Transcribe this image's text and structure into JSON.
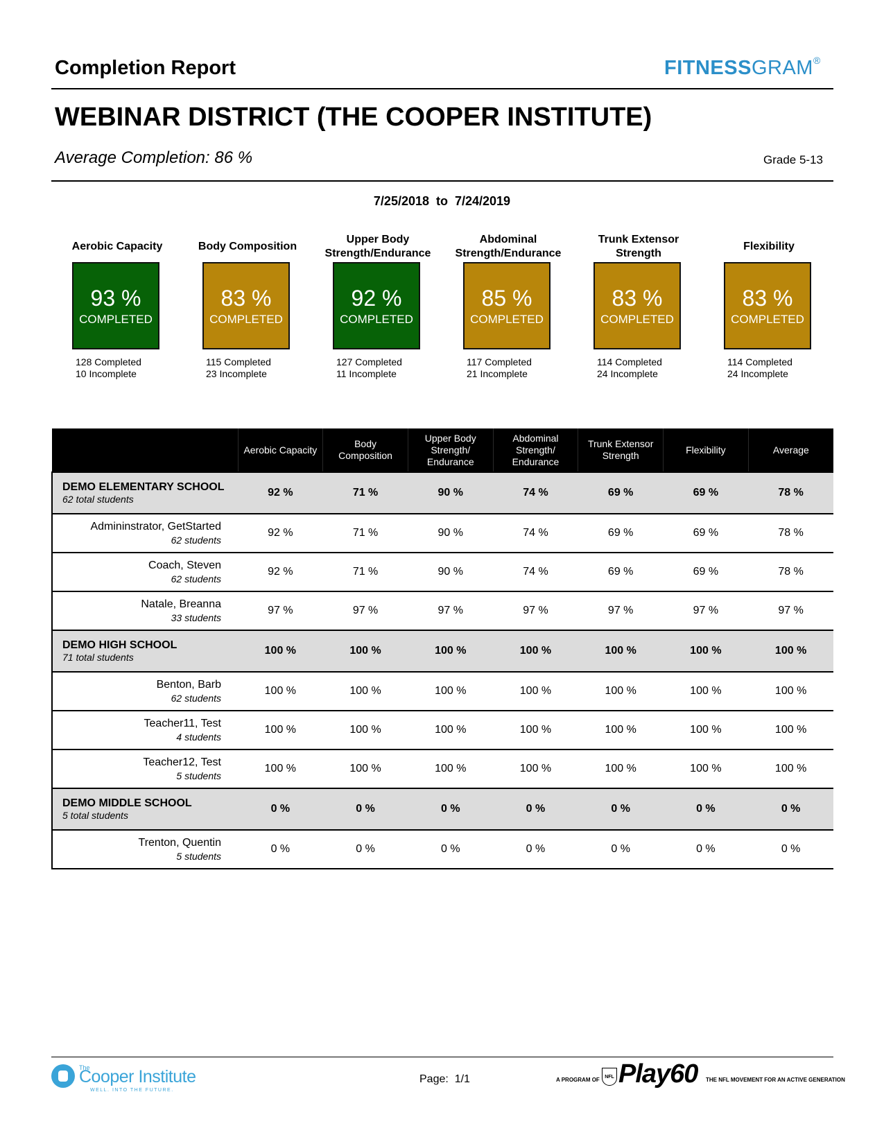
{
  "header": {
    "report_title": "Completion Report",
    "logo_bold": "FITNESS",
    "logo_light": "GRAM",
    "logo_reg": "®",
    "district": "WEBINAR DISTRICT (THE COOPER INSTITUTE)",
    "avg_completion_label": "Average Completion:",
    "avg_completion_value": "86 %",
    "grade": "Grade 5-13",
    "date_range": "7/25/2018  to  7/24/2019"
  },
  "colors": {
    "complete_green": "#076207",
    "partial_gold": "#b8860b"
  },
  "summary": [
    {
      "label_line1": "Aerobic Capacity",
      "label_line2": "",
      "pct": "93 %",
      "word": "COMPLETED",
      "completed": "128 Completed",
      "incomplete": "10 Incomplete",
      "status": "green"
    },
    {
      "label_line1": "Body Composition",
      "label_line2": "",
      "pct": "83 %",
      "word": "COMPLETED",
      "completed": "115 Completed",
      "incomplete": "23 Incomplete",
      "status": "gold"
    },
    {
      "label_line1": "Upper Body",
      "label_line2": "Strength/Endurance",
      "pct": "92 %",
      "word": "COMPLETED",
      "completed": "127 Completed",
      "incomplete": "11 Incomplete",
      "status": "green"
    },
    {
      "label_line1": "Abdominal",
      "label_line2": "Strength/Endurance",
      "pct": "85 %",
      "word": "COMPLETED",
      "completed": "117 Completed",
      "incomplete": "21 Incomplete",
      "status": "gold"
    },
    {
      "label_line1": "Trunk Extensor",
      "label_line2": "Strength",
      "pct": "83 %",
      "word": "COMPLETED",
      "completed": "114 Completed",
      "incomplete": "24 Incomplete",
      "status": "gold"
    },
    {
      "label_line1": "Flexibility",
      "label_line2": "",
      "pct": "83 %",
      "word": "COMPLETED",
      "completed": "114 Completed",
      "incomplete": "24 Incomplete",
      "status": "gold"
    }
  ],
  "table": {
    "columns": [
      [
        "Aerobic Capacity"
      ],
      [
        "Body",
        "Composition"
      ],
      [
        "Upper Body",
        "Strength/",
        "Endurance"
      ],
      [
        "Abdominal",
        "Strength/",
        "Endurance"
      ],
      [
        "Trunk Extensor",
        "Strength"
      ],
      [
        "Flexibility"
      ],
      [
        "Average"
      ]
    ],
    "rows": [
      {
        "type": "school",
        "name": "DEMO ELEMENTARY SCHOOL",
        "sub": "62 total students",
        "values": [
          "92 %",
          "71 %",
          "90 %",
          "74 %",
          "69 %",
          "69 %",
          "78 %"
        ]
      },
      {
        "type": "teacher",
        "name": "Admininstrator, GetStarted",
        "sub": "62 students",
        "values": [
          "92 %",
          "71 %",
          "90 %",
          "74 %",
          "69 %",
          "69 %",
          "78 %"
        ]
      },
      {
        "type": "teacher",
        "name": "Coach, Steven",
        "sub": "62 students",
        "values": [
          "92 %",
          "71 %",
          "90 %",
          "74 %",
          "69 %",
          "69 %",
          "78 %"
        ]
      },
      {
        "type": "teacher",
        "name": "Natale, Breanna",
        "sub": "33 students",
        "values": [
          "97 %",
          "97 %",
          "97 %",
          "97 %",
          "97 %",
          "97 %",
          "97 %"
        ]
      },
      {
        "type": "school",
        "name": "DEMO HIGH SCHOOL",
        "sub": "71 total students",
        "values": [
          "100 %",
          "100 %",
          "100 %",
          "100 %",
          "100 %",
          "100 %",
          "100 %"
        ]
      },
      {
        "type": "teacher",
        "name": "Benton, Barb",
        "sub": "62 students",
        "values": [
          "100 %",
          "100 %",
          "100 %",
          "100 %",
          "100 %",
          "100 %",
          "100 %"
        ]
      },
      {
        "type": "teacher",
        "name": "Teacher11, Test",
        "sub": "4 students",
        "values": [
          "100 %",
          "100 %",
          "100 %",
          "100 %",
          "100 %",
          "100 %",
          "100 %"
        ]
      },
      {
        "type": "teacher",
        "name": "Teacher12, Test",
        "sub": "5 students",
        "values": [
          "100 %",
          "100 %",
          "100 %",
          "100 %",
          "100 %",
          "100 %",
          "100 %"
        ]
      },
      {
        "type": "school",
        "name": "DEMO MIDDLE SCHOOL",
        "sub": "5 total students",
        "values": [
          "0 %",
          "0 %",
          "0 %",
          "0 %",
          "0 %",
          "0 %",
          "0 %"
        ]
      },
      {
        "type": "teacher",
        "name": "Trenton, Quentin",
        "sub": "5 students",
        "values": [
          "0 %",
          "0 %",
          "0 %",
          "0 %",
          "0 %",
          "0 %",
          "0 %"
        ]
      }
    ]
  },
  "footer": {
    "cooper_the": "The",
    "cooper_name": "Cooper Institute",
    "cooper_tag": "WELL. INTO THE FUTURE.",
    "page": "Page:  1/1",
    "program": "A PROGRAM OF",
    "nfl": "NFL",
    "play60": "Play60",
    "movement": "THE NFL MOVEMENT FOR AN ACTIVE GENERATION"
  }
}
